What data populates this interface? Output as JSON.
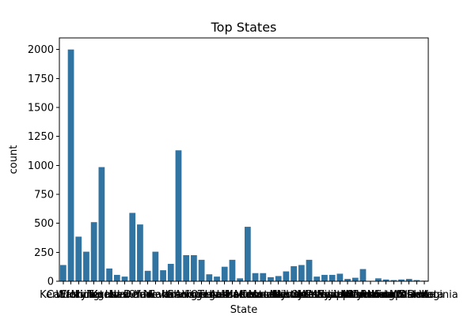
{
  "chart_data": {
    "type": "bar",
    "title": "Top States",
    "xlabel": "State",
    "ylabel": "count",
    "ylim": [
      0,
      2100
    ],
    "yticks": [
      0,
      250,
      500,
      750,
      1000,
      1250,
      1500,
      1750,
      2000
    ],
    "bar_color": "#3274a1",
    "categories": [
      "Kentucky",
      "California",
      "Florida",
      "Washington",
      "Michigan",
      "Texas",
      "Kansas",
      "Iowa",
      "Idaho",
      "New York",
      "Ohio",
      "Delaware",
      "Indiana",
      "Nevada",
      "Colorado",
      "Illinois",
      "Georgia",
      "Arizona",
      "Virginia",
      "Oregon",
      "Utah",
      "Tennessee",
      "Alabama",
      "Maine",
      "Minnesota",
      "Missouri",
      "Kentucky",
      "Connecticut",
      "Louisiana",
      "Massachusetts",
      "Nebraska",
      "New Jersey",
      "North Carolina",
      "Oklahoma",
      "Mississippi",
      "Maryland",
      "Wisconsin",
      "New Mexico",
      "South Carolina",
      "Montana",
      "Wyoming",
      "Vermont",
      "New Hampshire",
      "Rhode Island",
      "North Dakota",
      "South Dakota",
      "Alaska",
      "West Virginia"
    ],
    "values": [
      140,
      2000,
      385,
      255,
      510,
      985,
      110,
      55,
      40,
      590,
      490,
      90,
      255,
      95,
      150,
      1130,
      225,
      225,
      185,
      60,
      40,
      125,
      185,
      25,
      470,
      70,
      70,
      35,
      45,
      85,
      130,
      140,
      185,
      40,
      55,
      55,
      65,
      20,
      30,
      105,
      3,
      25,
      15,
      10,
      15,
      20,
      10,
      5
    ]
  }
}
